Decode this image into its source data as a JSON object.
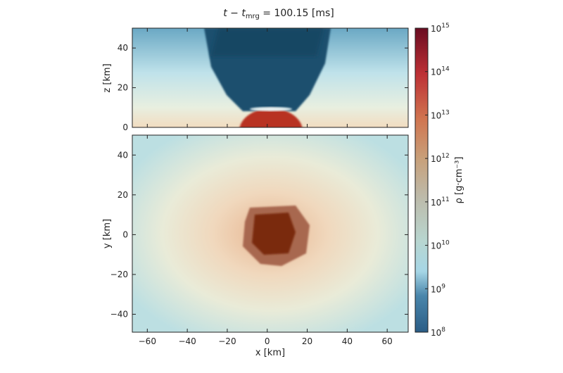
{
  "chart_data": {
    "type": "heatmap",
    "title_prefix": "t − t",
    "title_sub": "mrg",
    "title_suffix": " = 100.15 [ms]",
    "panels": [
      {
        "name": "xz-plane",
        "xlabel": "",
        "ylabel": "z [km]",
        "xlim": [
          -67.5,
          70.5
        ],
        "ylim": [
          0,
          50
        ],
        "yticks": [
          0,
          20,
          40
        ],
        "xticks": [
          -60,
          -40,
          -20,
          0,
          20,
          40,
          60
        ]
      },
      {
        "name": "xy-plane",
        "xlabel": "x [km]",
        "ylabel": "y [km]",
        "xlim": [
          -67.5,
          70.5
        ],
        "ylim": [
          -49,
          50
        ],
        "yticks": [
          -40,
          -20,
          0,
          20,
          40
        ],
        "xticks": [
          -60,
          -40,
          -20,
          0,
          20,
          40,
          60
        ]
      }
    ],
    "colorbar": {
      "label": "ρ [g·cm⁻³]",
      "scale": "log",
      "range_exponents": [
        8,
        15
      ],
      "tick_exponents": [
        8,
        9,
        10,
        11,
        12,
        13,
        14,
        15
      ],
      "tick_base": "10"
    }
  }
}
